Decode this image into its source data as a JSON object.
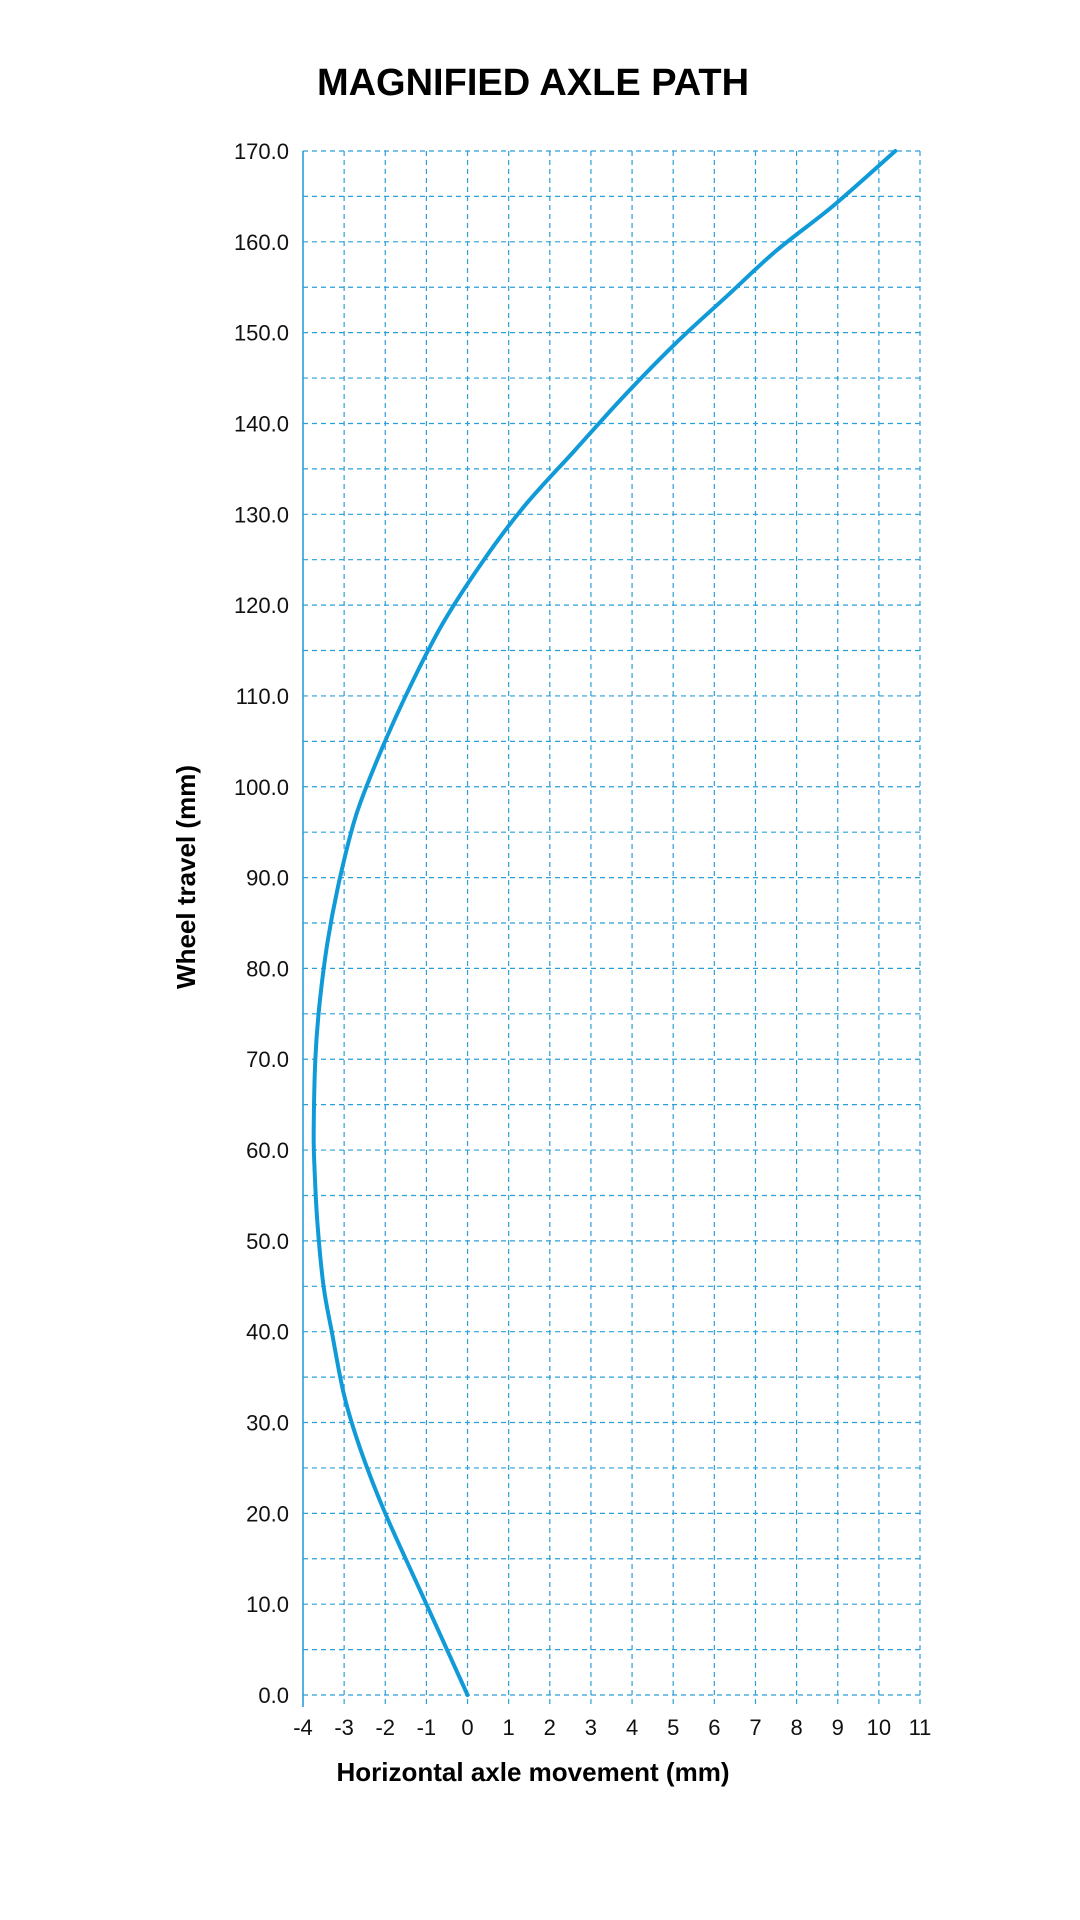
{
  "chart_data": {
    "type": "line",
    "title": "MAGNIFIED AXLE PATH",
    "xlabel": "Horizontal axle movement (mm)",
    "ylabel": "Wheel travel (mm)",
    "xlim": [
      -4,
      11
    ],
    "ylim": [
      0,
      170
    ],
    "x_ticks": [
      -4,
      -3,
      -2,
      -1,
      0,
      1,
      2,
      3,
      4,
      5,
      6,
      7,
      8,
      9,
      10,
      11
    ],
    "x_tick_labels": [
      "-4",
      "-3",
      "-2",
      "-1",
      "0",
      "1",
      "2",
      "3",
      "4",
      "5",
      "6",
      "7",
      "8",
      "9",
      "10",
      "11"
    ],
    "y_ticks": [
      0,
      10,
      20,
      30,
      40,
      50,
      60,
      70,
      80,
      90,
      100,
      110,
      120,
      130,
      140,
      150,
      160,
      170
    ],
    "y_tick_labels": [
      "0.0",
      "10.0",
      "20.0",
      "30.0",
      "40.0",
      "50.0",
      "60.0",
      "70.0",
      "80.0",
      "90.0",
      "100.0",
      "110.0",
      "120.0",
      "130.0",
      "140.0",
      "150.0",
      "160.0",
      "170.0"
    ],
    "grid": true,
    "grid_style": "dashed",
    "grid_minor_y_step": 5,
    "series": [
      {
        "color": "#109bd8",
        "x": [
          0.0,
          -1.0,
          -2.0,
          -2.6,
          -3.0,
          -3.3,
          -3.5,
          -3.65,
          -3.72,
          -3.74,
          -3.7,
          -3.6,
          -3.4,
          -3.1,
          -2.7,
          -2.1,
          -1.4,
          -0.6,
          0.4,
          1.4,
          2.6,
          3.8,
          5.1,
          6.3,
          7.5,
          8.9,
          10.4
        ],
        "y": [
          0,
          10,
          20,
          27,
          33,
          40,
          45,
          52,
          58,
          62,
          70,
          76,
          83,
          90,
          97,
          104,
          111,
          118,
          125,
          131,
          137,
          143,
          149,
          154,
          159,
          164,
          170
        ]
      }
    ],
    "colors": {
      "grid": "#2b9fd8",
      "axis": "#2b9fd8",
      "line": "#109bd8",
      "text": "#000000"
    }
  }
}
